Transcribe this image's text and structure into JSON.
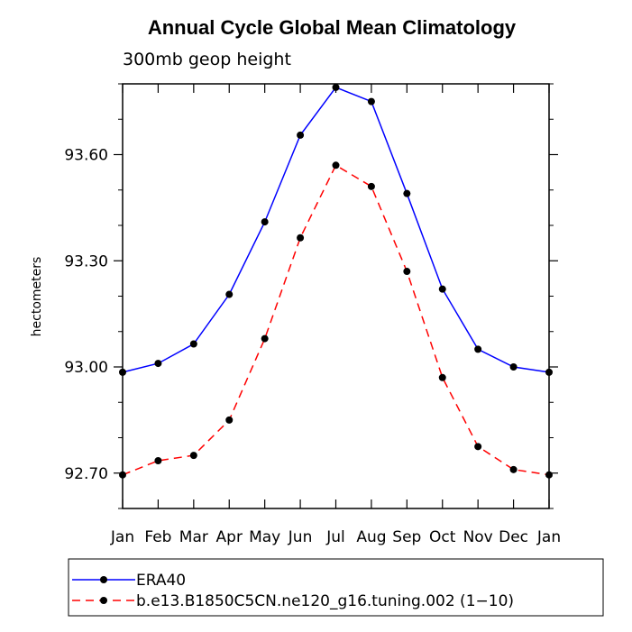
{
  "chart_data": {
    "type": "line",
    "title": "Annual Cycle Global Mean Climatology",
    "subtitle": "300mb geop height",
    "xlabel": "",
    "ylabel": "hectometers",
    "categories": [
      "Jan",
      "Feb",
      "Mar",
      "Apr",
      "May",
      "Jun",
      "Jul",
      "Aug",
      "Sep",
      "Oct",
      "Nov",
      "Dec",
      "Jan"
    ],
    "ylim": [
      92.6,
      93.8
    ],
    "yticks": [
      92.7,
      93.0,
      93.3,
      93.6
    ],
    "ytick_labels": [
      "92.70",
      "93.00",
      "93.30",
      "93.60"
    ],
    "grid": false,
    "legend_position": "bottom",
    "series": [
      {
        "name": "ERA40",
        "color": "#0000ff",
        "dash": "solid",
        "values": [
          92.985,
          93.01,
          93.065,
          93.205,
          93.41,
          93.655,
          93.79,
          93.75,
          93.49,
          93.22,
          93.05,
          93.0,
          92.985
        ]
      },
      {
        "name": "b.e13.B1850C5CN.ne120_g16.tuning.002 (1−10)",
        "color": "#ff0000",
        "dash": "dashed",
        "values": [
          92.695,
          92.735,
          92.75,
          92.85,
          93.08,
          93.365,
          93.57,
          93.51,
          93.27,
          92.97,
          92.775,
          92.71,
          92.695
        ]
      }
    ]
  }
}
